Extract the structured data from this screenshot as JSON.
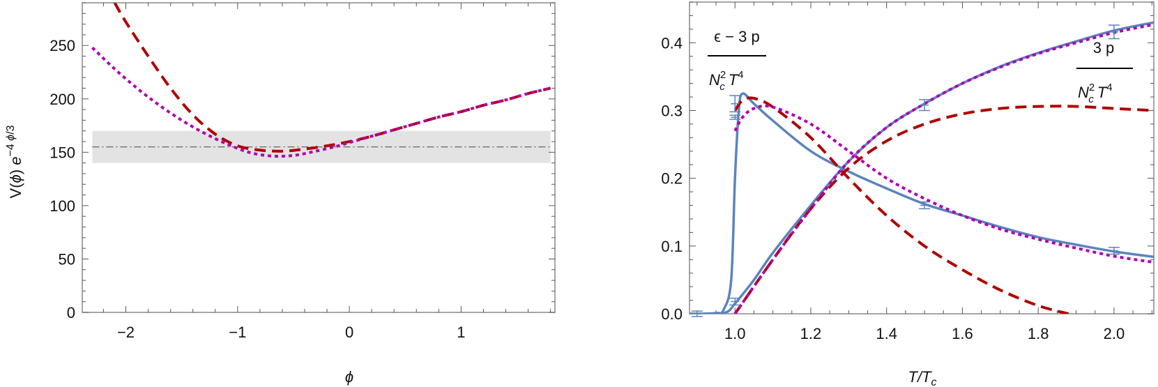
{
  "chart_data": [
    {
      "type": "line",
      "xlabel": "ϕ",
      "ylabel": "V(ϕ) e^{−4 ϕ/3}",
      "xlim": [
        -2.39,
        1.84
      ],
      "ylim": [
        0,
        290
      ],
      "xticks": [
        "-2",
        "-1",
        "0",
        "1"
      ],
      "yticks": [
        "0",
        "50",
        "100",
        "150",
        "200",
        "250"
      ],
      "grid": false,
      "band": {
        "y_low": 140,
        "y_high": 170,
        "x_from": -2.3,
        "x_to": 1.8,
        "color": "#e3e3e3"
      },
      "reference_line": {
        "y": 155,
        "style": "dash-dot",
        "color": "#555555"
      },
      "series": [
        {
          "style": "dashed",
          "color": "#b00000",
          "x": [
            -2.1,
            -2.0,
            -1.8,
            -1.6,
            -1.4,
            -1.2,
            -1.0,
            -0.8,
            -0.6,
            -0.4,
            -0.2,
            0,
            0.2,
            0.4,
            0.6,
            0.8,
            1.0,
            1.2,
            1.4,
            1.6,
            1.8
          ],
          "y": [
            290,
            272,
            240,
            210,
            185,
            167,
            156,
            152,
            151,
            153,
            156,
            160,
            165,
            171,
            177,
            183,
            188,
            194,
            199,
            205,
            210
          ]
        },
        {
          "style": "dotted",
          "color": "#b000b0",
          "x": [
            -2.3,
            -2.1,
            -1.9,
            -1.7,
            -1.5,
            -1.3,
            -1.1,
            -0.9,
            -0.7,
            -0.5,
            -0.3,
            -0.1,
            0,
            0.2,
            0.4,
            0.6,
            0.8,
            1.0,
            1.2,
            1.4,
            1.6,
            1.8
          ],
          "y": [
            248,
            228,
            210,
            194,
            180,
            168,
            158,
            150,
            146.5,
            147,
            151,
            156,
            159,
            165,
            171,
            177,
            183,
            188,
            194,
            199,
            205,
            210
          ]
        }
      ]
    },
    {
      "type": "line",
      "xlabel": "T/T_c",
      "ylabel": "",
      "xlim": [
        0.88,
        2.105
      ],
      "ylim": [
        0,
        0.46
      ],
      "xticks": [
        "1.0",
        "1.2",
        "1.4",
        "1.6",
        "1.8",
        "2.0"
      ],
      "yticks": [
        "0.0",
        "0.1",
        "0.2",
        "0.3",
        "0.4"
      ],
      "grid": false,
      "annotations": [
        {
          "numerator": "ϵ − 3 p",
          "denominator": "N_c^2 T^4"
        },
        {
          "numerator": "3 p",
          "denominator": "N_c^2 T^4"
        }
      ],
      "series": [
        {
          "style": "solid",
          "color": "#5b84bd",
          "x": [
            0.88,
            0.95,
            0.97,
            0.99,
            1.0,
            1.01,
            1.02,
            1.05,
            1.1,
            1.2,
            1.3,
            1.4,
            1.5,
            1.6,
            1.7,
            1.8,
            1.9,
            2.0,
            2.105
          ],
          "y": [
            0,
            0.001,
            0.006,
            0.05,
            0.2,
            0.3,
            0.325,
            0.31,
            0.285,
            0.24,
            0.21,
            0.185,
            0.162,
            0.145,
            0.128,
            0.113,
            0.102,
            0.092,
            0.084
          ]
        },
        {
          "style": "solid",
          "color": "#5b84bd",
          "x": [
            0.88,
            0.95,
            0.98,
            1.0,
            1.05,
            1.1,
            1.2,
            1.3,
            1.4,
            1.5,
            1.6,
            1.7,
            1.8,
            1.9,
            2.0,
            2.105
          ],
          "y": [
            0,
            0,
            0.003,
            0.015,
            0.05,
            0.09,
            0.16,
            0.225,
            0.275,
            0.31,
            0.34,
            0.365,
            0.385,
            0.402,
            0.418,
            0.43
          ]
        },
        {
          "style": "dashed",
          "color": "#b00000",
          "x": [
            1.0,
            1.02,
            1.05,
            1.1,
            1.2,
            1.3,
            1.4,
            1.5,
            1.6,
            1.7,
            1.8,
            1.88
          ],
          "y": [
            0.3,
            0.315,
            0.318,
            0.305,
            0.26,
            0.2,
            0.145,
            0.1,
            0.065,
            0.035,
            0.012,
            0
          ]
        },
        {
          "style": "dashed",
          "color": "#b00000",
          "x": [
            1.0,
            1.1,
            1.2,
            1.3,
            1.4,
            1.5,
            1.6,
            1.7,
            1.8,
            1.9,
            2.0,
            2.105
          ],
          "y": [
            0,
            0.08,
            0.155,
            0.215,
            0.255,
            0.28,
            0.295,
            0.303,
            0.306,
            0.306,
            0.303,
            0.3
          ]
        },
        {
          "style": "dotted",
          "color": "#b000b0",
          "x": [
            1.0,
            1.02,
            1.05,
            1.1,
            1.2,
            1.3,
            1.4,
            1.5,
            1.6,
            1.7,
            1.8,
            1.9,
            2.0,
            2.105
          ],
          "y": [
            0.27,
            0.29,
            0.303,
            0.305,
            0.28,
            0.24,
            0.2,
            0.17,
            0.145,
            0.125,
            0.11,
            0.097,
            0.085,
            0.076
          ]
        },
        {
          "style": "dotted",
          "color": "#b000b0",
          "x": [
            1.0,
            1.1,
            1.2,
            1.3,
            1.4,
            1.5,
            1.6,
            1.7,
            1.8,
            1.9,
            2.0,
            2.105
          ],
          "y": [
            0,
            0.08,
            0.155,
            0.225,
            0.275,
            0.31,
            0.34,
            0.364,
            0.384,
            0.4,
            0.415,
            0.427
          ]
        }
      ],
      "data_points": {
        "color": "#5b84bd",
        "points": [
          {
            "x": 0.9,
            "y": 0.0,
            "err": 0.004
          },
          {
            "x": 1.0,
            "y": 0.31,
            "err": 0.012
          },
          {
            "x": 1.0,
            "y": 0.29,
            "err": 0.003
          },
          {
            "x": 1.0,
            "y": 0.018,
            "err": 0.005
          },
          {
            "x": 1.5,
            "y": 0.16,
            "err": 0.005
          },
          {
            "x": 1.5,
            "y": 0.308,
            "err": 0.008
          },
          {
            "x": 2.0,
            "y": 0.093,
            "err": 0.005
          },
          {
            "x": 2.0,
            "y": 0.416,
            "err": 0.01
          }
        ]
      }
    }
  ]
}
